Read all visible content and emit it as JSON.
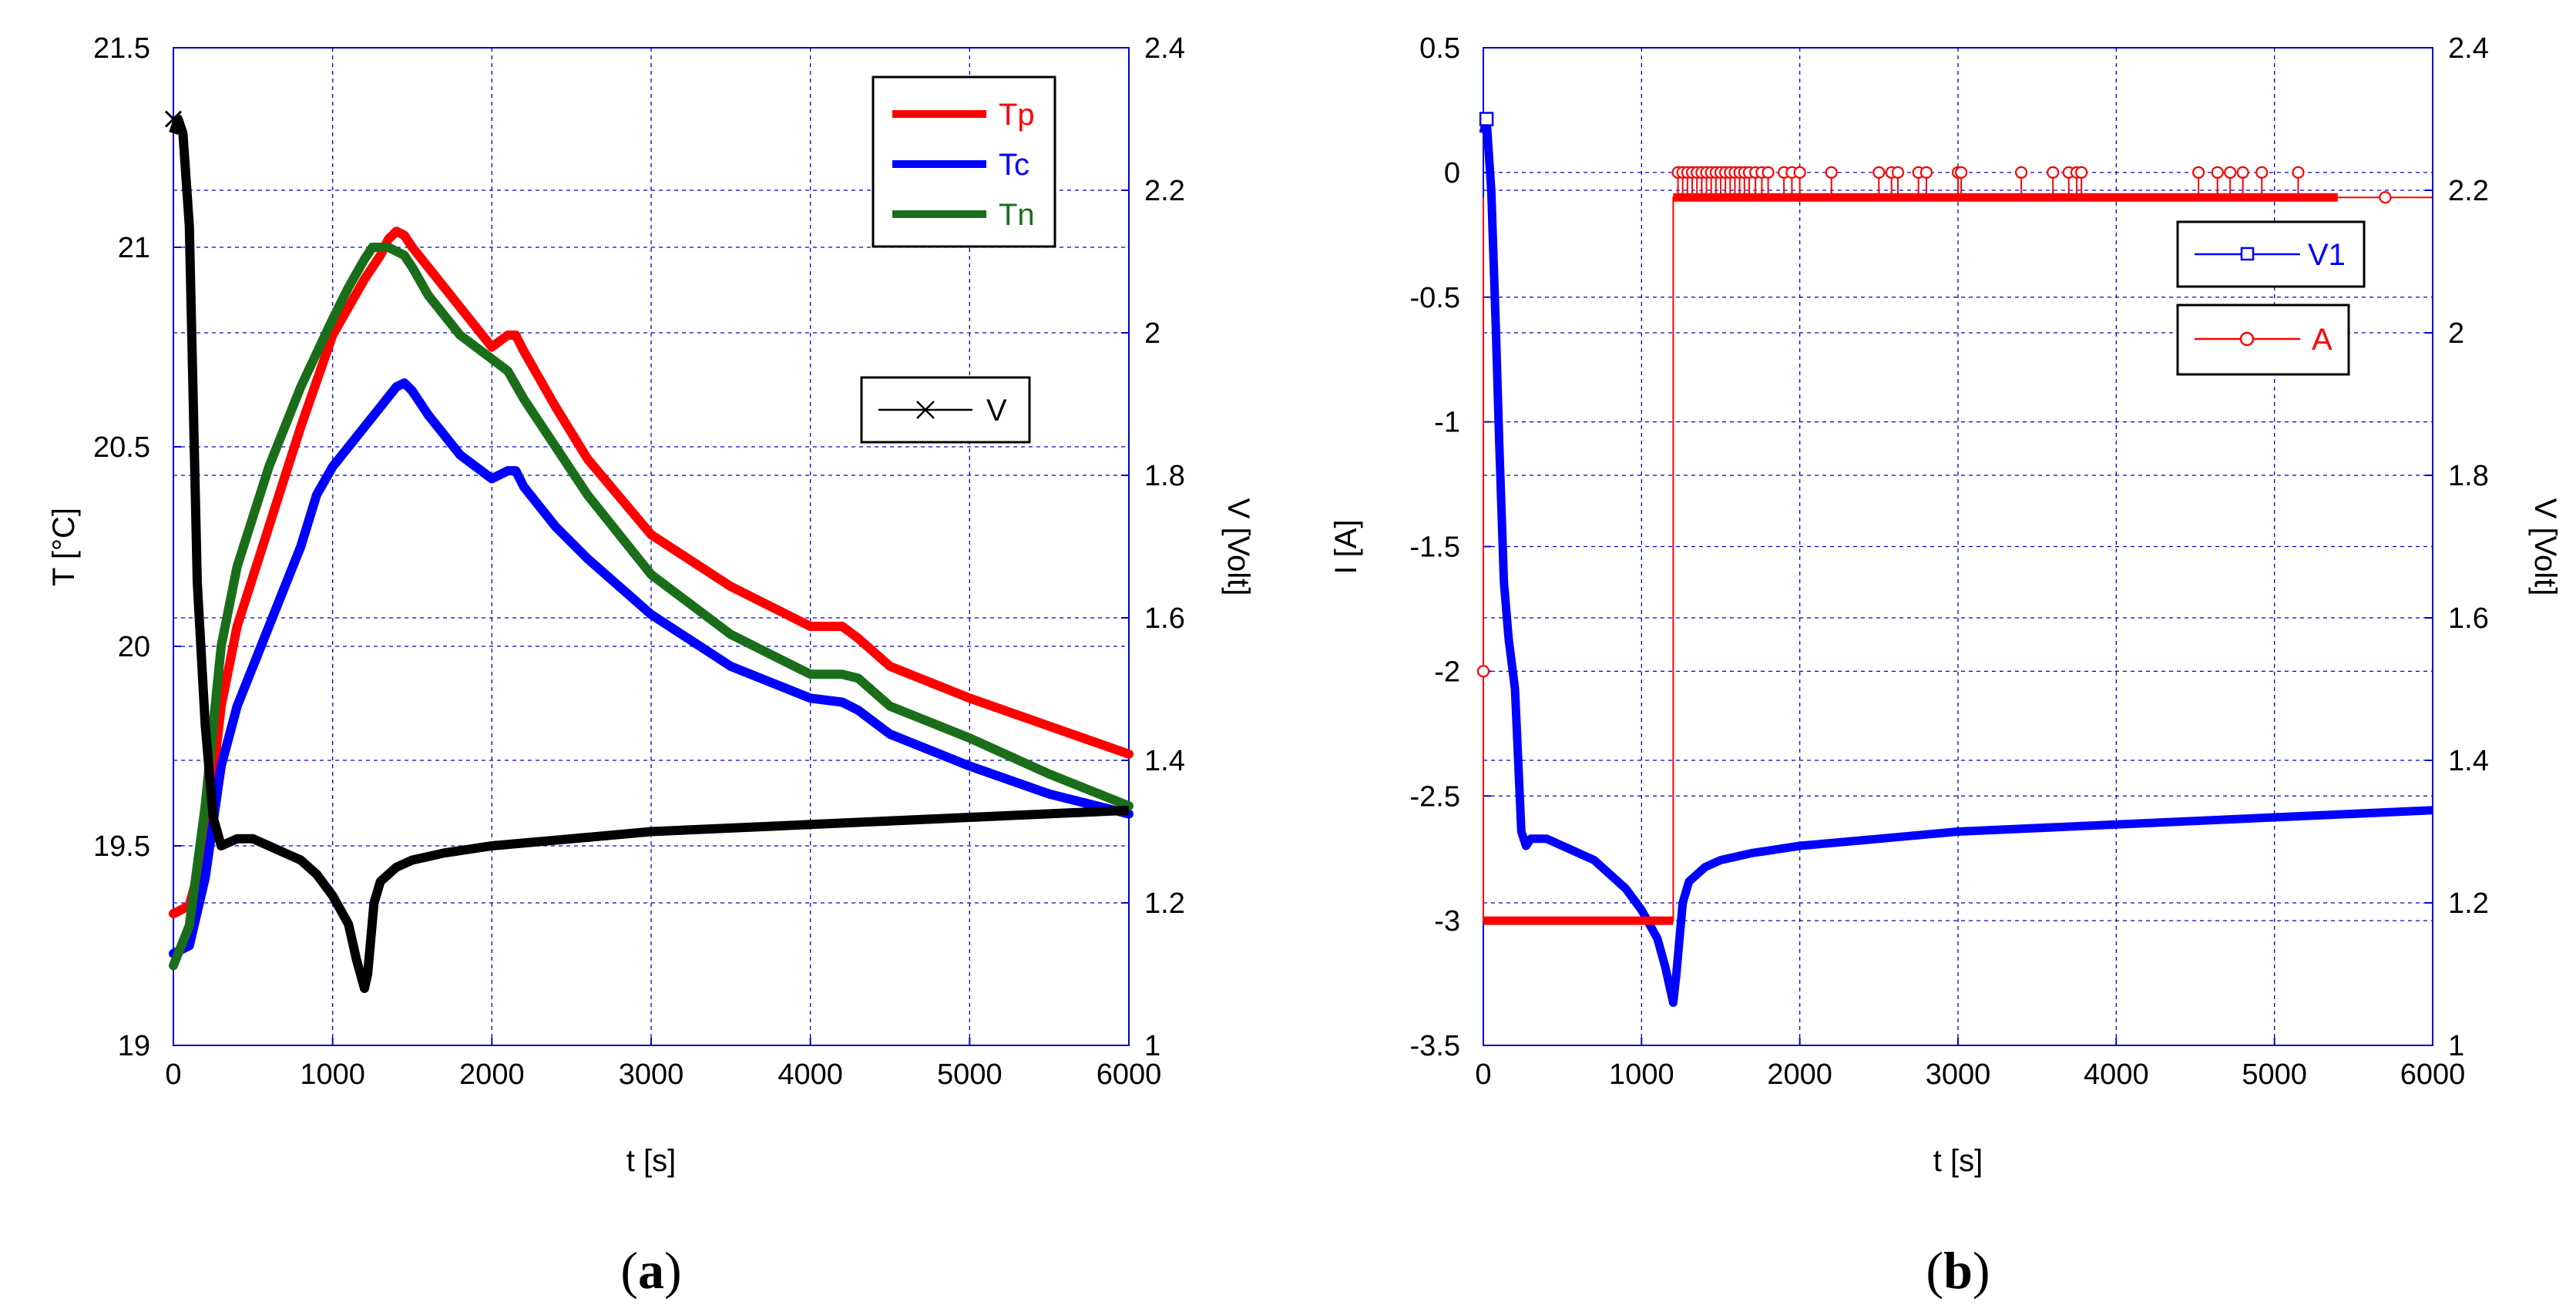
{
  "chart_data": [
    {
      "panel_label": "(a)",
      "panel_letter": "a",
      "type": "line",
      "xlabel": "t [s]",
      "ylabel": "T [°C]",
      "ylabel_right": "V [Volt]",
      "xlim": [
        0,
        6000
      ],
      "ylim": [
        19,
        21.5
      ],
      "ylim_right": [
        1,
        2.4
      ],
      "x_ticks": [
        "0",
        "1000",
        "2000",
        "3000",
        "4000",
        "5000",
        "6000"
      ],
      "y_ticks": [
        "19",
        "19.5",
        "20",
        "20.5",
        "21",
        "21.5"
      ],
      "y_ticks_right": [
        "1",
        "1.2",
        "1.4",
        "1.6",
        "1.8",
        "2",
        "2.2",
        "2.4"
      ],
      "grid": true,
      "colors": {
        "Tp": "#ff0000",
        "Tc": "#0000ff",
        "Tn": "#1a6e1a",
        "V": "#000000",
        "axis": "#0000cc"
      },
      "legend_temps": [
        "Tp",
        "Tc",
        "Tn"
      ],
      "legend_voltage": [
        "V"
      ],
      "series": [
        {
          "name": "Tp",
          "axis": "left",
          "x": [
            0,
            100,
            200,
            300,
            400,
            600,
            800,
            1000,
            1100,
            1200,
            1300,
            1350,
            1400,
            1450,
            1500,
            1600,
            1800,
            2000,
            2100,
            2150,
            2200,
            2400,
            2600,
            3000,
            3500,
            4000,
            4200,
            4300,
            4500,
            5000,
            5500,
            6000
          ],
          "y": [
            19.33,
            19.35,
            19.5,
            19.85,
            20.05,
            20.3,
            20.55,
            20.78,
            20.85,
            20.92,
            20.98,
            21.02,
            21.04,
            21.03,
            21.0,
            20.95,
            20.85,
            20.75,
            20.78,
            20.78,
            20.74,
            20.6,
            20.47,
            20.28,
            20.15,
            20.05,
            20.05,
            20.02,
            19.95,
            19.87,
            19.8,
            19.73
          ]
        },
        {
          "name": "Tc",
          "axis": "left",
          "x": [
            0,
            100,
            200,
            300,
            400,
            600,
            800,
            900,
            1000,
            1200,
            1300,
            1400,
            1450,
            1500,
            1600,
            1800,
            2000,
            2100,
            2150,
            2200,
            2400,
            2600,
            3000,
            3500,
            4000,
            4200,
            4300,
            4500,
            5000,
            5500,
            6000
          ],
          "y": [
            19.23,
            19.25,
            19.42,
            19.7,
            19.85,
            20.05,
            20.25,
            20.38,
            20.45,
            20.55,
            20.6,
            20.65,
            20.66,
            20.64,
            20.58,
            20.48,
            20.42,
            20.44,
            20.44,
            20.4,
            20.3,
            20.22,
            20.08,
            19.95,
            19.87,
            19.86,
            19.84,
            19.78,
            19.7,
            19.63,
            19.58
          ]
        },
        {
          "name": "Tn",
          "axis": "left",
          "x": [
            0,
            100,
            200,
            300,
            400,
            600,
            800,
            1000,
            1100,
            1200,
            1250,
            1300,
            1350,
            1400,
            1450,
            1500,
            1600,
            1800,
            2000,
            2100,
            2200,
            2400,
            2600,
            3000,
            3500,
            4000,
            4200,
            4300,
            4500,
            5000,
            5500,
            6000
          ],
          "y": [
            19.2,
            19.3,
            19.6,
            20.0,
            20.2,
            20.45,
            20.65,
            20.82,
            20.9,
            20.97,
            21.0,
            21.0,
            21.0,
            20.99,
            20.98,
            20.95,
            20.88,
            20.78,
            20.72,
            20.69,
            20.62,
            20.5,
            20.38,
            20.18,
            20.03,
            19.93,
            19.93,
            19.92,
            19.85,
            19.77,
            19.68,
            19.6
          ]
        },
        {
          "name": "V",
          "axis": "right",
          "x": [
            0,
            30,
            60,
            100,
            150,
            200,
            250,
            300,
            400,
            500,
            600,
            700,
            800,
            900,
            1000,
            1100,
            1150,
            1200,
            1220,
            1260,
            1300,
            1400,
            1500,
            1700,
            2000,
            2500,
            3000,
            4000,
            5000,
            6000
          ],
          "y": [
            2.28,
            2.3,
            2.28,
            2.15,
            1.65,
            1.45,
            1.32,
            1.28,
            1.29,
            1.29,
            1.28,
            1.27,
            1.26,
            1.24,
            1.21,
            1.17,
            1.12,
            1.08,
            1.1,
            1.2,
            1.23,
            1.25,
            1.26,
            1.27,
            1.28,
            1.29,
            1.3,
            1.31,
            1.32,
            1.33
          ]
        }
      ]
    },
    {
      "panel_label": "(b)",
      "panel_letter": "b",
      "type": "line",
      "xlabel": "t [s]",
      "ylabel": "I [A]",
      "ylabel_right": "V [Volt]",
      "xlim": [
        0,
        6000
      ],
      "ylim": [
        -3.5,
        0.5
      ],
      "ylim_right": [
        1,
        2.4
      ],
      "x_ticks": [
        "0",
        "1000",
        "2000",
        "3000",
        "4000",
        "5000",
        "6000"
      ],
      "y_ticks": [
        "-3.5",
        "-3",
        "-2.5",
        "-2",
        "-1.5",
        "-1",
        "-0.5",
        "0",
        "0.5"
      ],
      "y_ticks_right": [
        "1",
        "1.2",
        "1.4",
        "1.6",
        "1.8",
        "2",
        "2.2",
        "2.4"
      ],
      "grid": true,
      "colors": {
        "V1": "#0000ff",
        "A": "#ff0000",
        "axis": "#0000cc"
      },
      "legend": [
        "V1",
        "A"
      ],
      "series": [
        {
          "name": "V1",
          "axis": "right",
          "x": [
            0,
            20,
            50,
            80,
            100,
            130,
            160,
            200,
            240,
            270,
            300,
            400,
            500,
            600,
            700,
            800,
            900,
            1000,
            1100,
            1150,
            1200,
            1220,
            1260,
            1300,
            1400,
            1500,
            1700,
            2000,
            2500,
            3000,
            4000,
            5000,
            6000
          ],
          "y": [
            2.28,
            2.3,
            2.2,
            2.0,
            1.85,
            1.65,
            1.57,
            1.5,
            1.3,
            1.28,
            1.29,
            1.29,
            1.28,
            1.27,
            1.26,
            1.24,
            1.22,
            1.19,
            1.15,
            1.11,
            1.06,
            1.1,
            1.2,
            1.23,
            1.25,
            1.26,
            1.27,
            1.28,
            1.29,
            1.3,
            1.31,
            1.32,
            1.33
          ]
        },
        {
          "name": "A",
          "axis": "left",
          "x": [
            0,
            0,
            1200,
            1200,
            6000
          ],
          "y": [
            -0.1,
            -3.0,
            -3.0,
            -0.1,
            -0.1
          ],
          "spike_points_x": [
            1230,
            1260,
            1290,
            1320,
            1350,
            1380,
            1410,
            1440,
            1470,
            1500,
            1530,
            1560,
            1590,
            1620,
            1650,
            1680,
            1720,
            1760,
            1800,
            1900,
            1950,
            2000,
            2200,
            2500,
            2580,
            2620,
            2750,
            2800,
            3000,
            3020,
            3400,
            3600,
            3700,
            3750,
            3780,
            4520,
            4640,
            4720,
            4800,
            4920,
            5150
          ],
          "spike_y": 0,
          "marker_points_x": [
            0,
            5700
          ],
          "marker_points_y": [
            -2.0,
            -0.1
          ]
        }
      ]
    }
  ]
}
